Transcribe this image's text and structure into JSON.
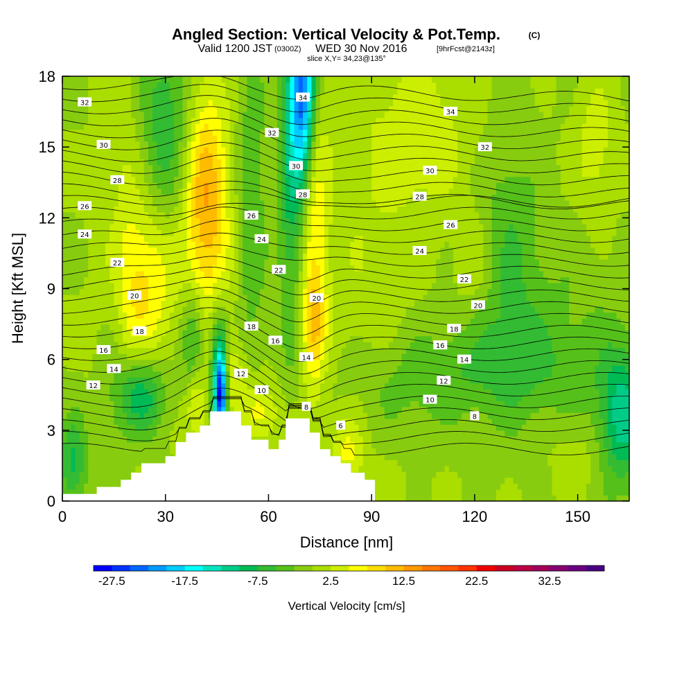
{
  "title": {
    "main": "Angled Section: Vertical Velocity & Pot.Temp.",
    "unit": "(C)",
    "valid_prefix": "Valid 1200 JST",
    "valid_utc": "(0300Z)",
    "valid_day": "WED 30 Nov 2016",
    "forecast": "[9hrFcst@2143z]",
    "slice": "slice X,Y= 34,23@135°"
  },
  "chart_data": {
    "type": "heatmap",
    "xlabel": "Distance [nm]",
    "ylabel": "Height [Kft MSL]",
    "xlim": [
      0,
      165
    ],
    "ylim": [
      0,
      18
    ],
    "xticks": [
      0,
      30,
      60,
      90,
      120,
      150
    ],
    "yticks": [
      0,
      3,
      6,
      9,
      12,
      15,
      18
    ],
    "grid": false,
    "colorbar": {
      "title": "Vertical Velocity [cm/s]",
      "min": -30,
      "step": 2.5,
      "labels": [
        -27.5,
        -17.5,
        -7.5,
        2.5,
        12.5,
        22.5,
        32.5
      ],
      "colors": [
        "#0000ff",
        "#0033ff",
        "#0066ff",
        "#0099ff",
        "#00ccff",
        "#00ffff",
        "#00e5c0",
        "#00cc88",
        "#00bb55",
        "#33bb33",
        "#55c01a",
        "#88cc10",
        "#aadd00",
        "#ccee00",
        "#ffff00",
        "#ffdd00",
        "#ffbb00",
        "#ff9900",
        "#ff7700",
        "#ff5500",
        "#ff3300",
        "#ee0000",
        "#cc0022",
        "#bb0044",
        "#a0005a",
        "#880070",
        "#6a0080",
        "#4b0082"
      ]
    },
    "terrain_kft": [
      [
        0,
        0.3
      ],
      [
        10,
        0.3
      ],
      [
        10,
        0.6
      ],
      [
        17,
        0.6
      ],
      [
        17,
        0.9
      ],
      [
        20,
        0.9
      ],
      [
        20,
        1.2
      ],
      [
        23,
        1.2
      ],
      [
        23,
        1.6
      ],
      [
        30,
        1.6
      ],
      [
        30,
        1.9
      ],
      [
        33,
        1.9
      ],
      [
        33,
        2.5
      ],
      [
        36,
        2.5
      ],
      [
        36,
        2.9
      ],
      [
        40,
        2.9
      ],
      [
        40,
        3.2
      ],
      [
        43,
        3.2
      ],
      [
        43,
        3.8
      ],
      [
        52,
        3.8
      ],
      [
        52,
        3.2
      ],
      [
        55,
        3.2
      ],
      [
        55,
        2.6
      ],
      [
        60,
        2.6
      ],
      [
        60,
        2.2
      ],
      [
        63,
        2.2
      ],
      [
        63,
        2.6
      ],
      [
        65,
        2.6
      ],
      [
        65,
        3.5
      ],
      [
        72,
        3.5
      ],
      [
        72,
        2.9
      ],
      [
        75,
        2.9
      ],
      [
        75,
        2.2
      ],
      [
        78,
        2.2
      ],
      [
        78,
        1.9
      ],
      [
        81,
        1.9
      ],
      [
        81,
        1.6
      ],
      [
        84,
        1.6
      ],
      [
        84,
        1.2
      ],
      [
        88,
        1.2
      ],
      [
        88,
        0.9
      ],
      [
        91,
        0.9
      ],
      [
        91,
        0.3
      ]
    ],
    "velocity_features": [
      {
        "x": 42,
        "y": 11.5,
        "sx": 5,
        "sy": 3.2,
        "w": 9
      },
      {
        "x": 42,
        "y": 14.5,
        "sx": 4,
        "sy": 3,
        "w": 5
      },
      {
        "x": 24,
        "y": 9.2,
        "sx": 6,
        "sy": 2.5,
        "w": 8
      },
      {
        "x": 16,
        "y": 12.5,
        "sx": 4,
        "sy": 5,
        "w": 4
      },
      {
        "x": 73,
        "y": 11,
        "sx": 3,
        "sy": 5,
        "w": 7
      },
      {
        "x": 73,
        "y": 7.5,
        "sx": 2.5,
        "sy": 1.6,
        "w": 6
      },
      {
        "x": 48,
        "y": 5.5,
        "sx": 3.5,
        "sy": 1.2,
        "w": 6
      },
      {
        "x": 39,
        "y": 4,
        "sx": 2,
        "sy": 1,
        "w": 6
      },
      {
        "x": 57,
        "y": 3.8,
        "sx": 4,
        "sy": 1,
        "w": 7
      },
      {
        "x": 83,
        "y": 2.2,
        "sx": 3,
        "sy": 1,
        "w": 5
      },
      {
        "x": 105,
        "y": 15.5,
        "sx": 10,
        "sy": 2.5,
        "w": 4
      },
      {
        "x": 155,
        "y": 15,
        "sx": 4,
        "sy": 2,
        "w": 4
      },
      {
        "x": 120,
        "y": 10,
        "sx": 4,
        "sy": 1.5,
        "w": 3
      },
      {
        "x": 150,
        "y": 2,
        "sx": 6,
        "sy": 1.2,
        "w": 2
      },
      {
        "x": 88,
        "y": 8,
        "sx": 10,
        "sy": 8,
        "w": 2
      },
      {
        "x": 70,
        "y": 17.5,
        "sx": 2.5,
        "sy": 2.5,
        "w": -22
      },
      {
        "x": 67,
        "y": 14,
        "sx": 3,
        "sy": 5,
        "w": -9
      },
      {
        "x": 46,
        "y": 4.5,
        "sx": 1.3,
        "sy": 1.3,
        "w": -26
      },
      {
        "x": 45.5,
        "y": 6,
        "sx": 2,
        "sy": 1.8,
        "w": -10
      },
      {
        "x": 38,
        "y": 7,
        "sx": 2.5,
        "sy": 1.5,
        "w": -8
      },
      {
        "x": 23,
        "y": 4.5,
        "sx": 5,
        "sy": 1.2,
        "w": -10
      },
      {
        "x": 30,
        "y": 16,
        "sx": 5,
        "sy": 3,
        "w": -7
      },
      {
        "x": 3,
        "y": 1.6,
        "sx": 3,
        "sy": 1.4,
        "w": -8
      },
      {
        "x": 163,
        "y": 3.5,
        "sx": 5,
        "sy": 2,
        "w": -11
      },
      {
        "x": 115,
        "y": 5.5,
        "sx": 25,
        "sy": 1.4,
        "w": -4
      },
      {
        "x": 130,
        "y": 11,
        "sx": 6,
        "sy": 4,
        "w": -4
      },
      {
        "x": 140,
        "y": 7,
        "sx": 16,
        "sy": 3,
        "w": -3
      },
      {
        "x": 95,
        "y": 3.5,
        "sx": 10,
        "sy": 1.5,
        "w": -2
      },
      {
        "x": 55,
        "y": 12.5,
        "sx": 3,
        "sy": 5,
        "w": -5
      },
      {
        "x": 15,
        "y": 9,
        "sx": 3,
        "sy": 6,
        "w": -3
      }
    ],
    "contour_labels": [
      {
        "text": "32",
        "x": 6.5,
        "y": 16.9
      },
      {
        "text": "30",
        "x": 12,
        "y": 15.1
      },
      {
        "text": "28",
        "x": 16,
        "y": 13.6
      },
      {
        "text": "26",
        "x": 6.5,
        "y": 12.5
      },
      {
        "text": "24",
        "x": 6.5,
        "y": 11.3
      },
      {
        "text": "22",
        "x": 16,
        "y": 10.1
      },
      {
        "text": "20",
        "x": 21,
        "y": 8.7
      },
      {
        "text": "18",
        "x": 22.5,
        "y": 7.2
      },
      {
        "text": "16",
        "x": 12,
        "y": 6.4
      },
      {
        "text": "14",
        "x": 15,
        "y": 5.6
      },
      {
        "text": "12",
        "x": 9,
        "y": 4.9
      },
      {
        "text": "34",
        "x": 70,
        "y": 17.1
      },
      {
        "text": "32",
        "x": 61,
        "y": 15.6
      },
      {
        "text": "30",
        "x": 68,
        "y": 14.2
      },
      {
        "text": "28",
        "x": 70,
        "y": 13.0
      },
      {
        "text": "26",
        "x": 55,
        "y": 12.1
      },
      {
        "text": "24",
        "x": 58,
        "y": 11.1
      },
      {
        "text": "22",
        "x": 63,
        "y": 9.8
      },
      {
        "text": "20",
        "x": 74,
        "y": 8.6
      },
      {
        "text": "18",
        "x": 55,
        "y": 7.4
      },
      {
        "text": "16",
        "x": 62,
        "y": 6.8
      },
      {
        "text": "14",
        "x": 71,
        "y": 6.1
      },
      {
        "text": "12",
        "x": 52,
        "y": 5.4
      },
      {
        "text": "10",
        "x": 58,
        "y": 4.7
      },
      {
        "text": "8",
        "x": 71,
        "y": 4.0
      },
      {
        "text": "6",
        "x": 81,
        "y": 3.2
      },
      {
        "text": "34",
        "x": 113,
        "y": 16.5
      },
      {
        "text": "32",
        "x": 123,
        "y": 15.0
      },
      {
        "text": "30",
        "x": 107,
        "y": 14.0
      },
      {
        "text": "28",
        "x": 104,
        "y": 12.9
      },
      {
        "text": "26",
        "x": 113,
        "y": 11.7
      },
      {
        "text": "24",
        "x": 104,
        "y": 10.6
      },
      {
        "text": "22",
        "x": 117,
        "y": 9.4
      },
      {
        "text": "20",
        "x": 121,
        "y": 8.3
      },
      {
        "text": "18",
        "x": 114,
        "y": 7.3
      },
      {
        "text": "16",
        "x": 110,
        "y": 6.6
      },
      {
        "text": "14",
        "x": 117,
        "y": 6.0
      },
      {
        "text": "12",
        "x": 111,
        "y": 5.1
      },
      {
        "text": "10",
        "x": 107,
        "y": 4.3
      },
      {
        "text": "8",
        "x": 120,
        "y": 3.6
      }
    ],
    "isentrope_levels": [
      4,
      5,
      6,
      7,
      8,
      9,
      10,
      11,
      12,
      13,
      14,
      15,
      16,
      17,
      18,
      19,
      20,
      21,
      22,
      23,
      24,
      25,
      26,
      27,
      28,
      29,
      30,
      31,
      32,
      33,
      34,
      35
    ]
  }
}
